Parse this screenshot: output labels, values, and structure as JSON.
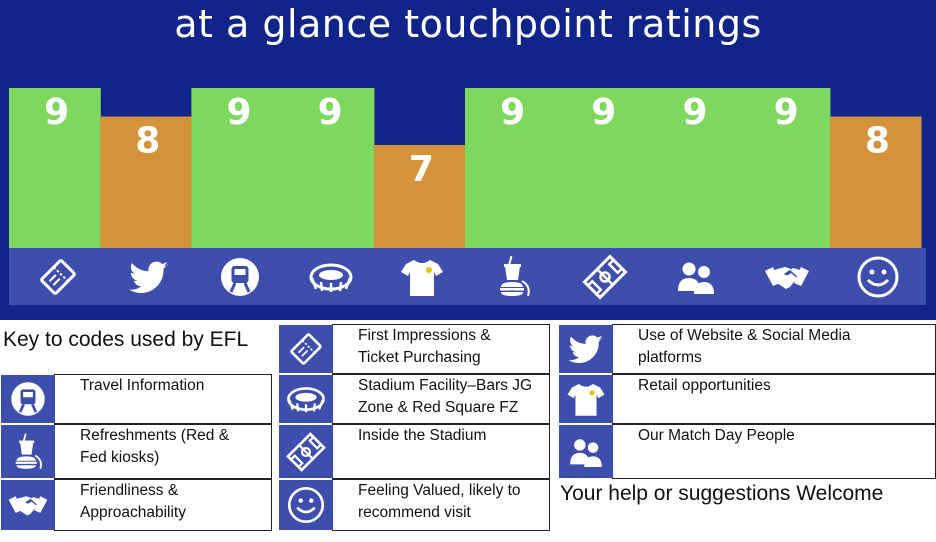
{
  "title": "at a glance touchpoint ratings",
  "chart_data": {
    "type": "bar",
    "title": "at a glance touchpoint ratings",
    "ylim": [
      0,
      10
    ],
    "categories": [
      "ticket-icon",
      "twitter-icon",
      "metro-icon",
      "stadium-icon",
      "shirt-icon",
      "refreshments-icon",
      "pitch-icon",
      "people-icon",
      "handshake-icon",
      "smiley-icon"
    ],
    "values": [
      9,
      8,
      9,
      9,
      7,
      9,
      9,
      9,
      9,
      8
    ],
    "value_labels": [
      "9",
      "8",
      "9",
      "9",
      "7",
      "9",
      "9",
      "9",
      "9",
      "8"
    ],
    "colors": {
      "score_9": "#7dd85d",
      "score_other": "#d4923a",
      "background": "#10248a",
      "icon_strip": "#3d4ead"
    }
  },
  "key": {
    "heading": "Key to codes used by EFL",
    "footer": "Your help or suggestions Welcome",
    "items": [
      {
        "icon": "ticket-icon",
        "lines": [
          "First Impressions &",
          "Ticket Purchasing"
        ]
      },
      {
        "icon": "twitter-icon",
        "lines": [
          "Use of Website & Social Media",
          "platforms"
        ]
      },
      {
        "icon": "metro-icon",
        "lines": [
          "Travel Information",
          ""
        ]
      },
      {
        "icon": "stadium-icon",
        "lines": [
          "Stadium Facility–Bars JG",
          "Zone & Red Square FZ"
        ]
      },
      {
        "icon": "shirt-icon",
        "lines": [
          "Retail opportunities",
          ""
        ]
      },
      {
        "icon": "refreshments-icon",
        "lines": [
          "Refreshments (Red &",
          "Fed kiosks)"
        ]
      },
      {
        "icon": "pitch-icon",
        "lines": [
          "Inside the Stadium",
          ""
        ]
      },
      {
        "icon": "people-icon",
        "lines": [
          "Our Match Day People",
          ""
        ]
      },
      {
        "icon": "handshake-icon",
        "lines": [
          "Friendliness &",
          "Approachability"
        ]
      },
      {
        "icon": "smiley-icon",
        "lines": [
          "Feeling Valued, likely to",
          "recommend visit"
        ]
      }
    ]
  }
}
